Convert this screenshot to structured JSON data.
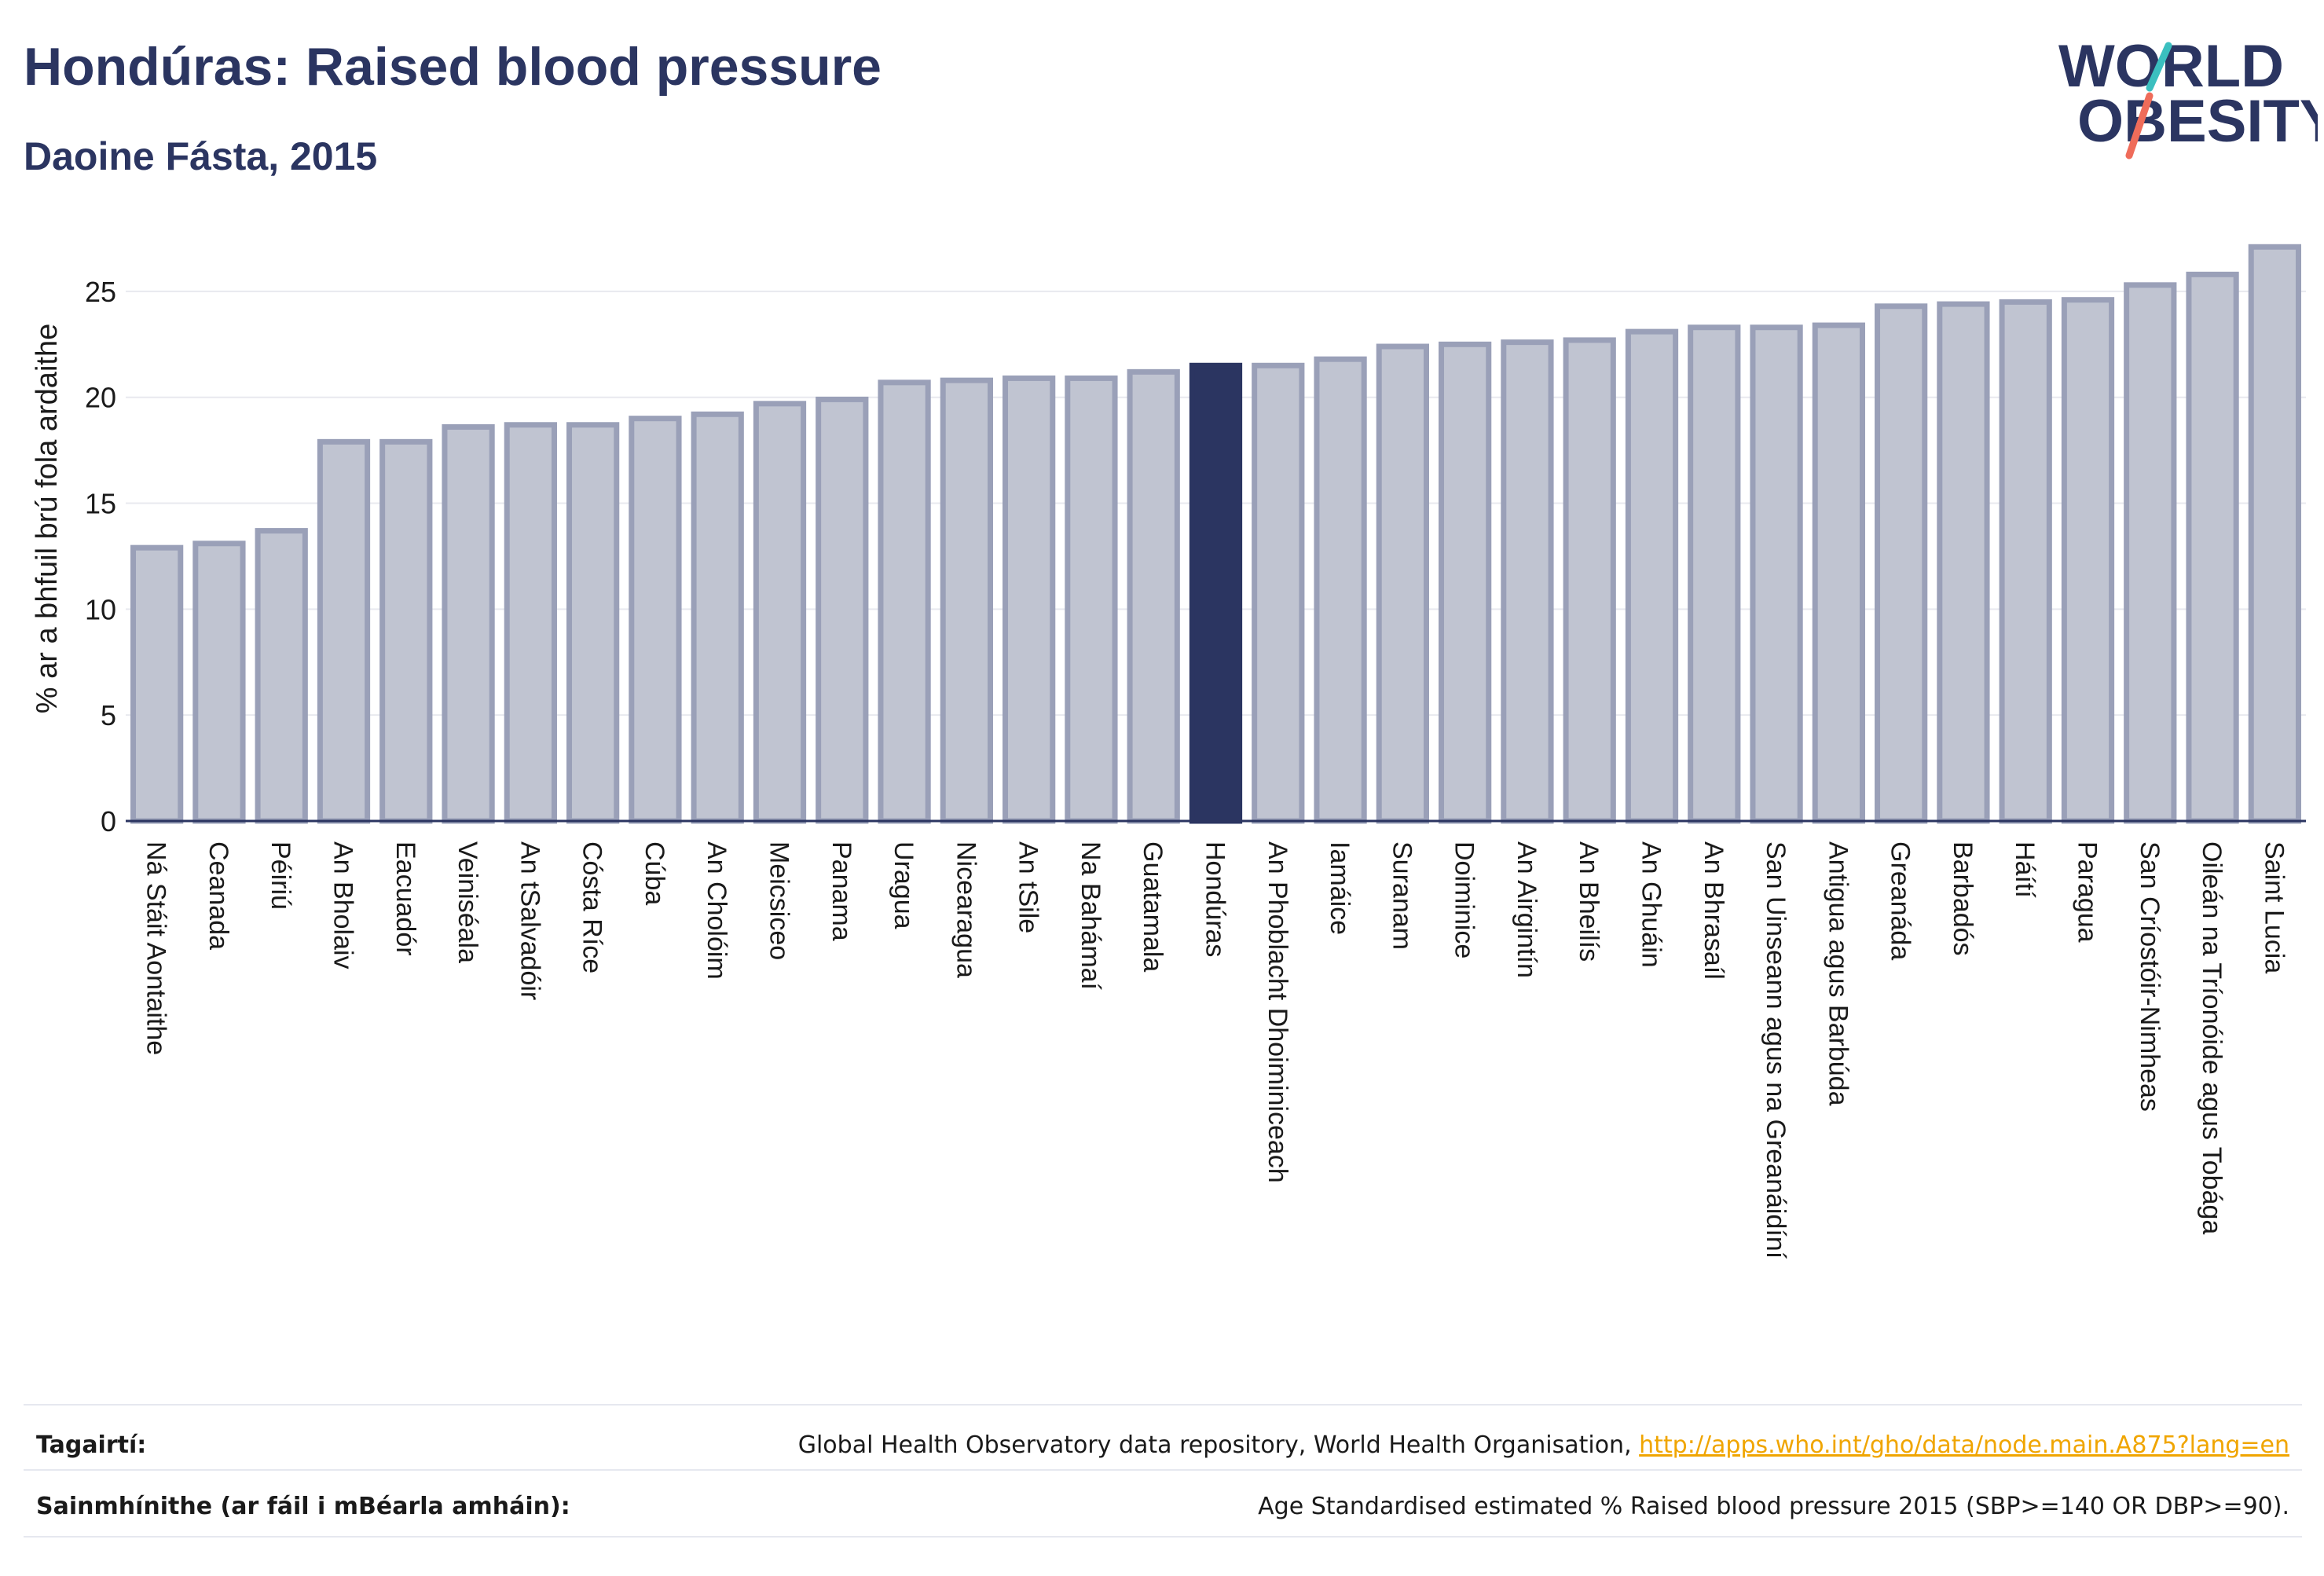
{
  "header": {
    "title": "Hondúras: Raised blood pressure",
    "subtitle": "Daoine Fásta, 2015"
  },
  "logo": {
    "line1": "WORLD",
    "line2": "OBESITY"
  },
  "colors": {
    "highlight": "#2b3561",
    "bar_fill": "#c0c4d1",
    "bar_stroke": "#9aa0b8",
    "text": "#2b3561",
    "link": "#f0a500",
    "logo_teal": "#3bbfbf",
    "logo_coral": "#ef6c5a"
  },
  "chart_data": {
    "type": "bar",
    "ylabel": "% ar a bhfuil brú fola ardaithe",
    "ylim": [
      0,
      28
    ],
    "yticks": [
      0,
      5,
      10,
      15,
      20,
      25
    ],
    "grid": true,
    "highlight": "Hondúras",
    "categories": [
      "Ná Stáit Aontaithe",
      "Ceanada",
      "Péiriú",
      "An Bholaiv",
      "Eacuadór",
      "Veiniséala",
      "An tSalvadóir",
      "Cósta Ríce",
      "Cúba",
      "An Cholóim",
      "Meicsiceo",
      "Panama",
      "Uragua",
      "Nicearagua",
      "An tSile",
      "Na Bahámaí",
      "Guatamala",
      "Hondúras",
      "An Phoblacht Dhoiminiceach",
      "Iamáice",
      "Suranam",
      "Doiminice",
      "An Airgintín",
      "An Bheilís",
      "An Ghuáin",
      "An Bhrasaíl",
      "San Uinseann agus na Greanáidíní",
      "Antigua agus Barbúda",
      "Greanáda",
      "Barbadós",
      "Háítí",
      "Paragua",
      "San Críostóir-Nimheas",
      "Oileán na Tríonóide agus Tobága",
      "Saint Lucia"
    ],
    "values": [
      12.9,
      13.1,
      13.7,
      17.9,
      17.9,
      18.6,
      18.7,
      18.7,
      19.0,
      19.2,
      19.7,
      19.9,
      20.7,
      20.8,
      20.9,
      20.9,
      21.2,
      21.5,
      21.5,
      21.8,
      22.4,
      22.5,
      22.6,
      22.7,
      23.1,
      23.3,
      23.3,
      23.4,
      24.3,
      24.4,
      24.5,
      24.6,
      25.3,
      25.8,
      27.1
    ]
  },
  "footer": {
    "references_label": "Tagairtí:",
    "references_text": "Global Health Observatory data repository, World Health Organisation, ",
    "references_link": "http://apps.who.int/gho/data/node.main.A875?lang=en",
    "definitions_label": "Sainmhínithe (ar fáil i mBéarla amháin):",
    "definitions_text": "Age Standardised estimated % Raised blood pressure 2015 (SBP>=140 OR DBP>=90)."
  }
}
